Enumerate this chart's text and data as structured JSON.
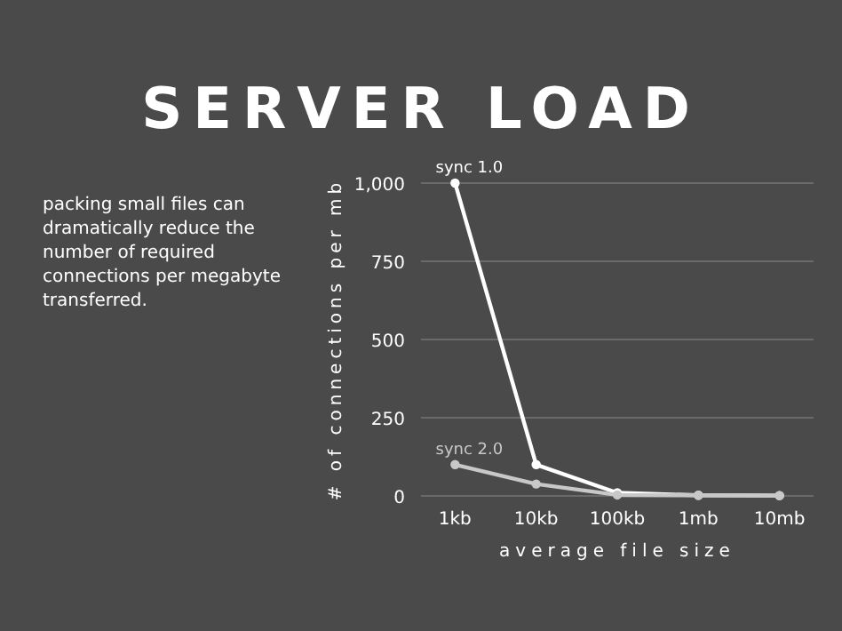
{
  "chart_data": {
    "type": "line",
    "title": "SERVER LOAD",
    "xlabel": "average file size",
    "ylabel": "# of connections per mb",
    "categories": [
      "1kb",
      "10kb",
      "100kb",
      "1mb",
      "10mb"
    ],
    "series": [
      {
        "name": "sync 1.0",
        "color": "#ffffff",
        "values": [
          1000,
          100,
          10,
          2,
          1
        ]
      },
      {
        "name": "sync 2.0",
        "color": "#c8c8c8",
        "values": [
          100,
          38,
          3,
          2,
          1
        ]
      }
    ],
    "ylim": [
      0,
      1000
    ],
    "yticks": [
      0,
      {
        "value": 250,
        "label": "250"
      },
      {
        "value": 500,
        "label": "500"
      },
      {
        "value": 750,
        "label": "750"
      },
      {
        "value": 1000,
        "label": "1,000"
      }
    ],
    "grid": "y",
    "marker": "circle",
    "annotations": [
      "packing small files can dramatically reduce the number of required connections per megabyte transferred."
    ]
  }
}
